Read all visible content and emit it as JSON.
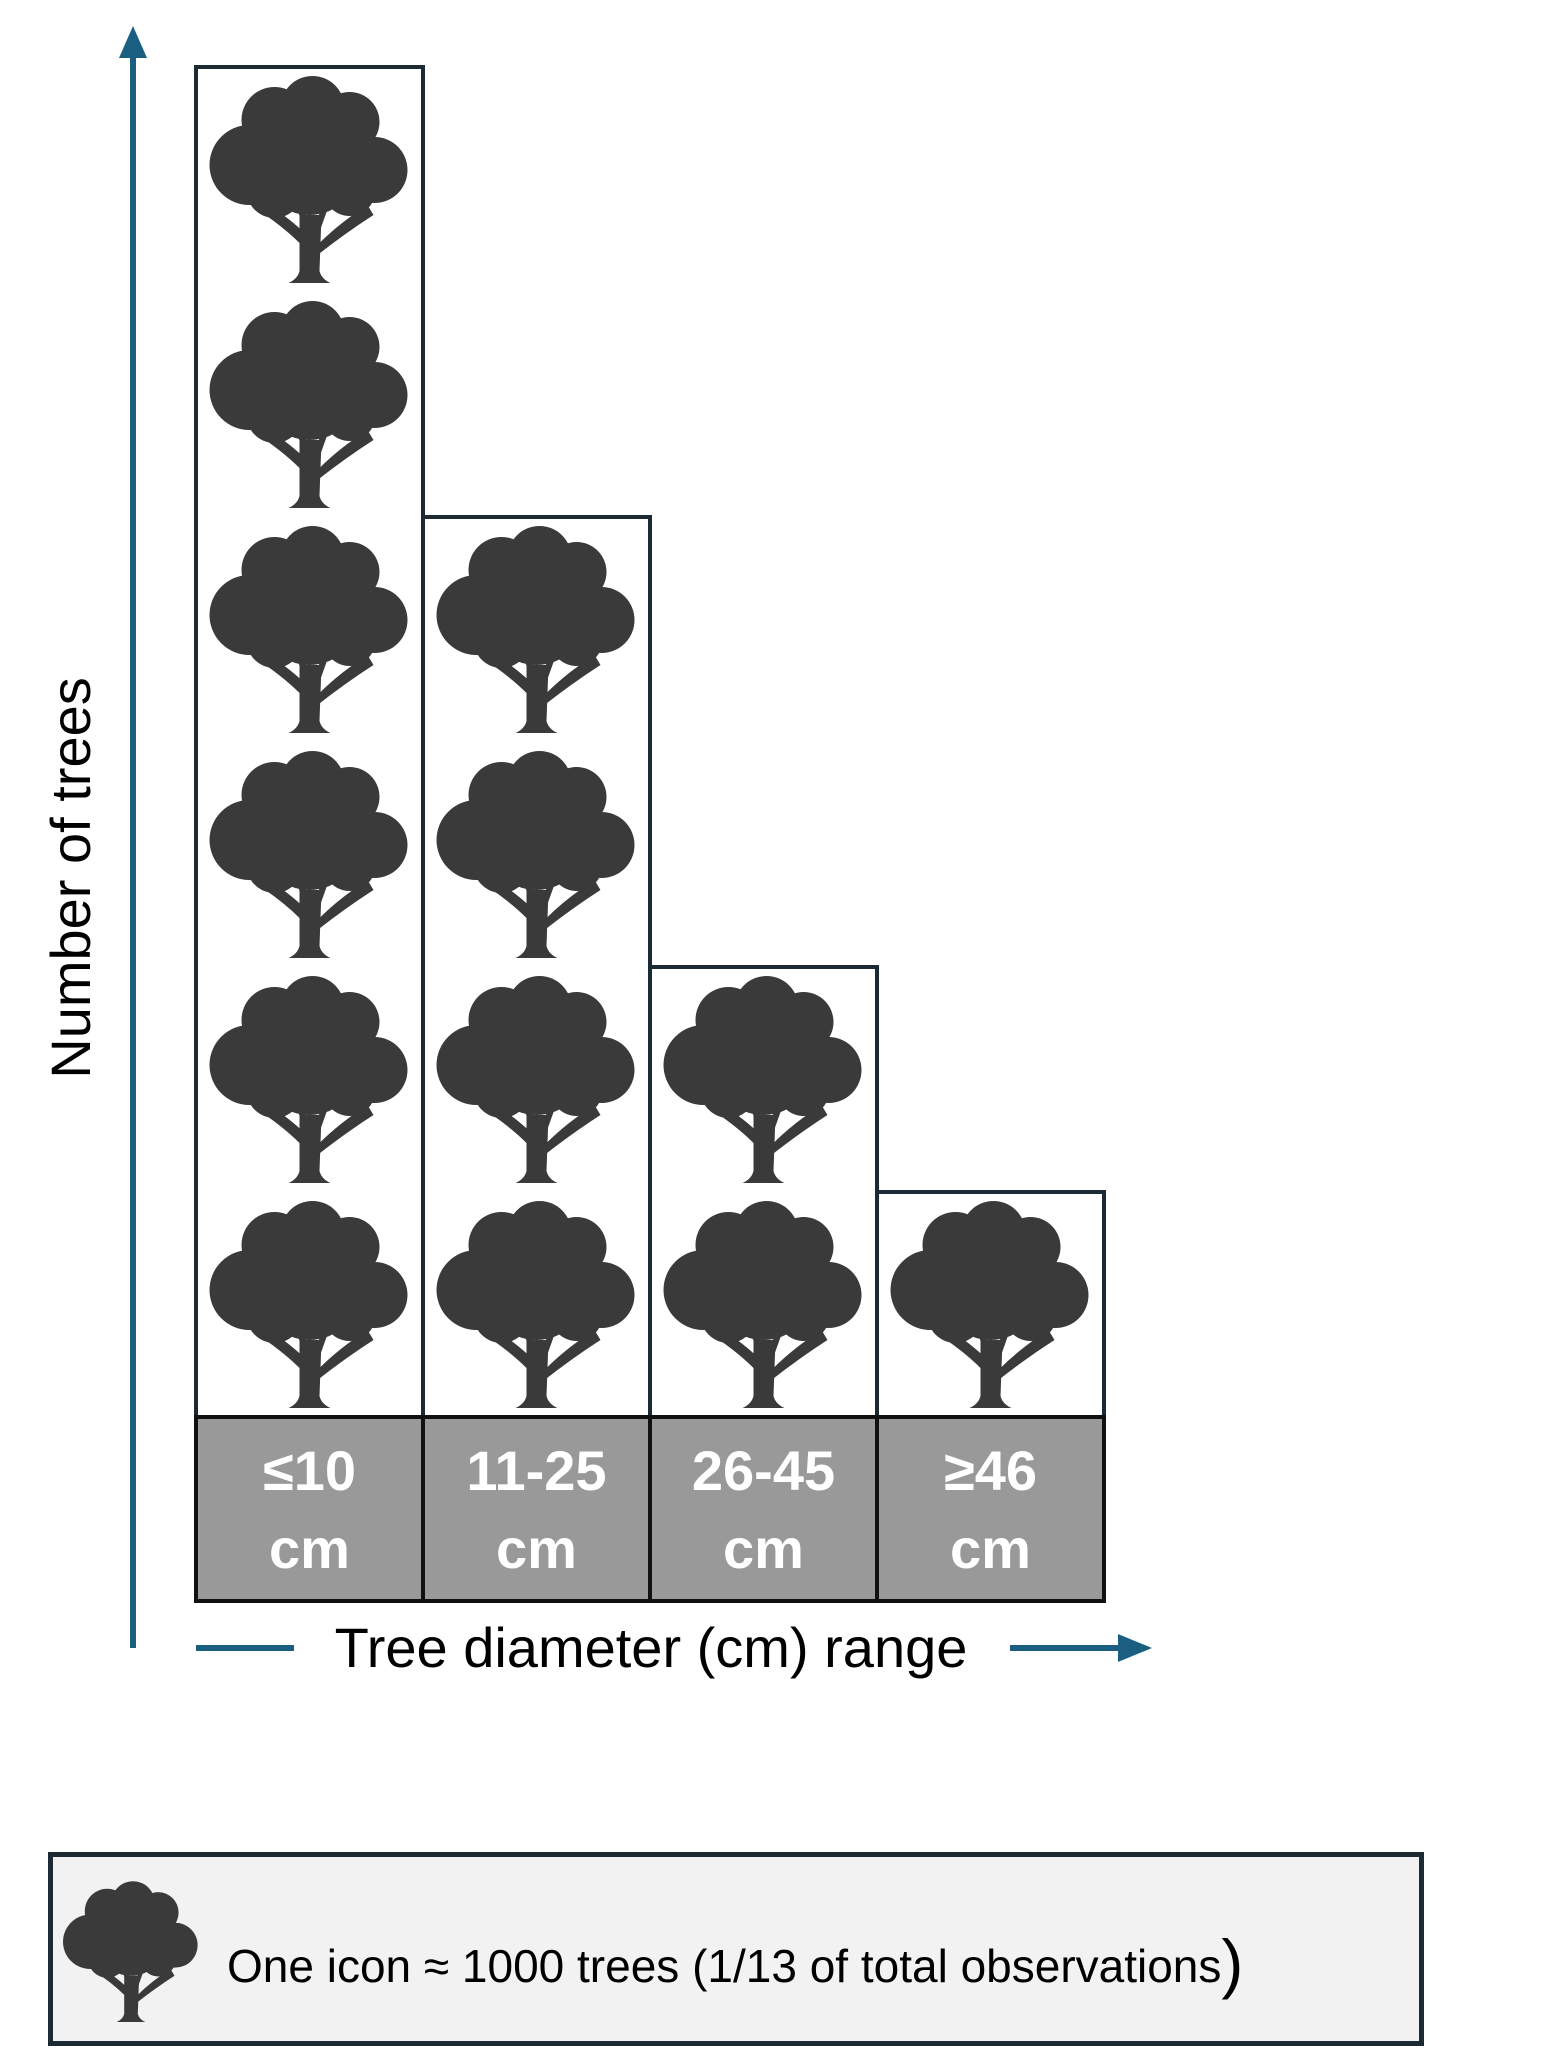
{
  "chart_data": {
    "type": "bar",
    "style": "pictogram",
    "categories": [
      {
        "line1": "≤10",
        "line2": "cm"
      },
      {
        "line1": "11-25",
        "line2": "cm"
      },
      {
        "line1": "26-45",
        "line2": "cm"
      },
      {
        "line1": "≥46",
        "line2": "cm"
      }
    ],
    "values": [
      6,
      4,
      2,
      1
    ],
    "xlabel": "Tree diameter (cm) range",
    "ylabel": "Number of trees",
    "icon": "tree-icon",
    "grid": false
  },
  "legend": {
    "icon": "tree-icon",
    "text": "One icon ≈ 1000 trees (1/13 of total observations",
    "closing_paren": ")"
  },
  "colors": {
    "axis_arrow": "#1a5f82",
    "icon": "#3a3a3a",
    "bar_border": "#1c2a33",
    "label_cell": "#999999",
    "legend_bg": "#f2f2f2"
  }
}
